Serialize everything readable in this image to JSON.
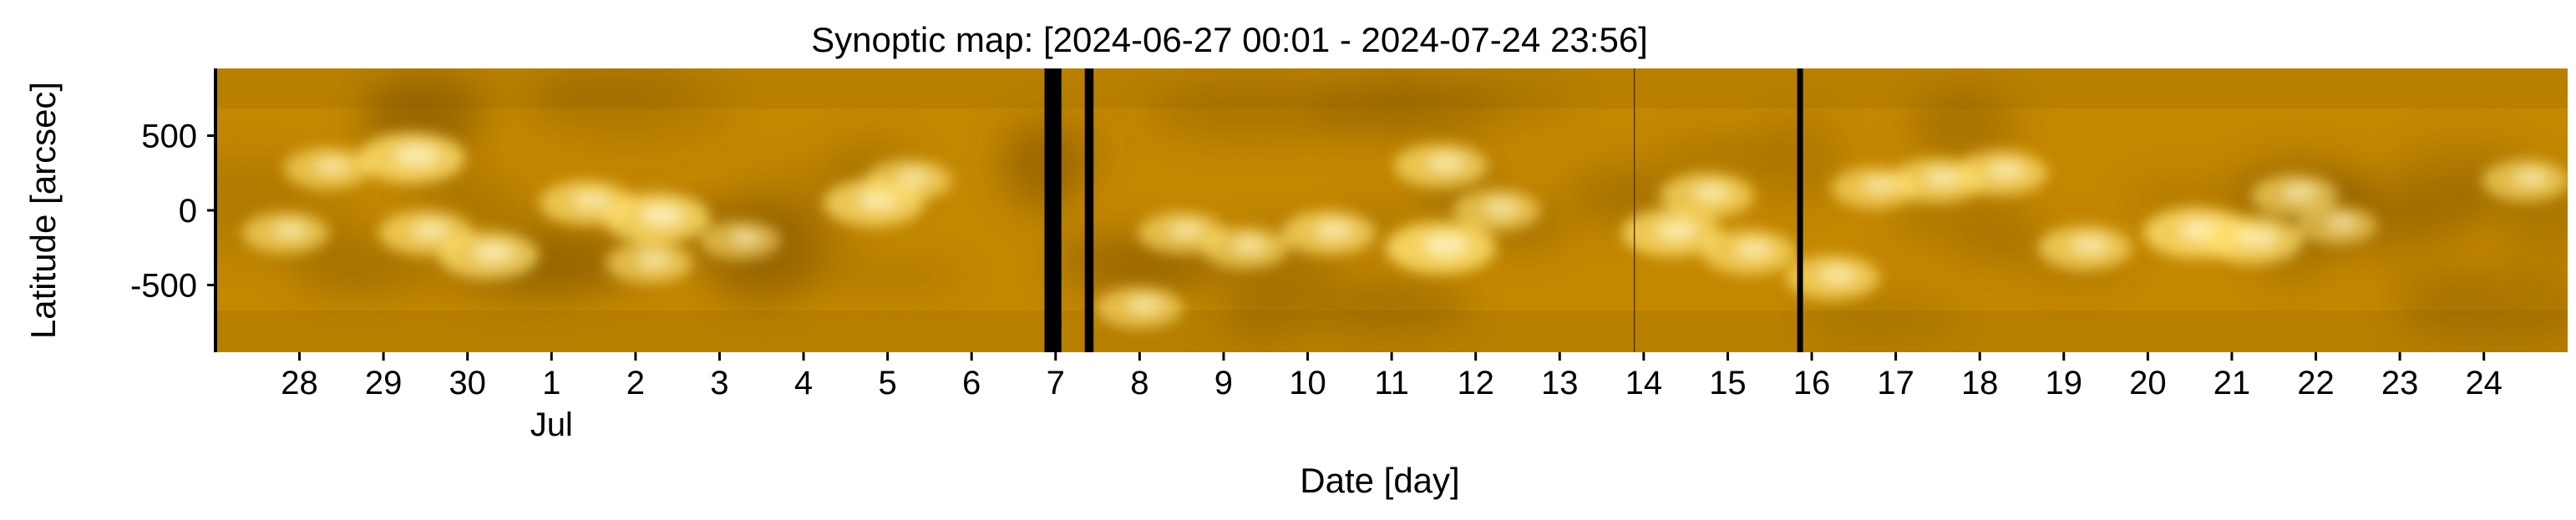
{
  "chart_data": {
    "type": "heatmap",
    "title": "Synoptic map: [2024-06-27 00:01 - 2024-07-24 23:56]",
    "xlabel": "Date [day]",
    "ylabel": "Latitude [arcsec]",
    "ylim": [
      -950,
      950
    ],
    "xlim": [
      "2024-06-27 00:01",
      "2024-07-24 23:56"
    ],
    "y_ticks": [
      500,
      0,
      -500
    ],
    "y_tick_labels": [
      "500",
      "0",
      "-500"
    ],
    "x_ticks": [
      {
        "date": "2024-06-28",
        "label": "28"
      },
      {
        "date": "2024-06-29",
        "label": "29"
      },
      {
        "date": "2024-06-30",
        "label": "30"
      },
      {
        "date": "2024-07-01",
        "label": "1",
        "sublabel": "Jul"
      },
      {
        "date": "2024-07-02",
        "label": "2"
      },
      {
        "date": "2024-07-03",
        "label": "3"
      },
      {
        "date": "2024-07-04",
        "label": "4"
      },
      {
        "date": "2024-07-05",
        "label": "5"
      },
      {
        "date": "2024-07-06",
        "label": "6"
      },
      {
        "date": "2024-07-07",
        "label": "7"
      },
      {
        "date": "2024-07-08",
        "label": "8"
      },
      {
        "date": "2024-07-09",
        "label": "9"
      },
      {
        "date": "2024-07-10",
        "label": "10"
      },
      {
        "date": "2024-07-11",
        "label": "11"
      },
      {
        "date": "2024-07-12",
        "label": "12"
      },
      {
        "date": "2024-07-13",
        "label": "13"
      },
      {
        "date": "2024-07-14",
        "label": "14"
      },
      {
        "date": "2024-07-15",
        "label": "15"
      },
      {
        "date": "2024-07-16",
        "label": "16"
      },
      {
        "date": "2024-07-17",
        "label": "17"
      },
      {
        "date": "2024-07-18",
        "label": "18"
      },
      {
        "date": "2024-07-19",
        "label": "19"
      },
      {
        "date": "2024-07-20",
        "label": "20"
      },
      {
        "date": "2024-07-21",
        "label": "21"
      },
      {
        "date": "2024-07-22",
        "label": "22"
      },
      {
        "date": "2024-07-23",
        "label": "23"
      },
      {
        "date": "2024-07-24",
        "label": "24"
      }
    ],
    "data_gaps": [
      {
        "start": "2024-07-06 20:50",
        "end": "2024-07-07 01:40"
      },
      {
        "start": "2024-07-07 08:20",
        "end": "2024-07-07 10:50"
      },
      {
        "start": "2024-07-15 19:50",
        "end": "2024-07-15 21:30"
      }
    ],
    "thin_gaps": [
      "2024-06-27 00:01",
      "2024-07-13 21:20"
    ],
    "colors": {
      "background": "#c48800",
      "bright": "#ffe070",
      "dark": "#7a5000",
      "gap": "#000000"
    },
    "bright_regions": [
      {
        "date": "2024-06-29 08:00",
        "lat": 350,
        "intensity": 0.9
      },
      {
        "date": "2024-06-28 08:00",
        "lat": 280,
        "intensity": 0.6
      },
      {
        "date": "2024-06-29 12:00",
        "lat": -150,
        "intensity": 0.7
      },
      {
        "date": "2024-06-30 06:00",
        "lat": -300,
        "intensity": 0.8
      },
      {
        "date": "2024-06-27 20:00",
        "lat": -150,
        "intensity": 0.6
      },
      {
        "date": "2024-07-01 10:00",
        "lat": 50,
        "intensity": 0.7
      },
      {
        "date": "2024-07-02 06:00",
        "lat": -50,
        "intensity": 0.9
      },
      {
        "date": "2024-07-02 04:00",
        "lat": -350,
        "intensity": 0.6
      },
      {
        "date": "2024-07-03 06:00",
        "lat": -200,
        "intensity": 0.5
      },
      {
        "date": "2024-07-04 20:00",
        "lat": 50,
        "intensity": 0.8
      },
      {
        "date": "2024-07-05 06:00",
        "lat": 200,
        "intensity": 0.6
      },
      {
        "date": "2024-07-08 00:00",
        "lat": -650,
        "intensity": 0.6
      },
      {
        "date": "2024-07-08 12:00",
        "lat": -150,
        "intensity": 0.6
      },
      {
        "date": "2024-07-09 06:00",
        "lat": -250,
        "intensity": 0.6
      },
      {
        "date": "2024-07-10 06:00",
        "lat": -150,
        "intensity": 0.7
      },
      {
        "date": "2024-07-11 14:00",
        "lat": -250,
        "intensity": 0.95
      },
      {
        "date": "2024-07-11 14:00",
        "lat": 300,
        "intensity": 0.7
      },
      {
        "date": "2024-07-12 06:00",
        "lat": 0,
        "intensity": 0.6
      },
      {
        "date": "2024-07-14 08:00",
        "lat": -150,
        "intensity": 0.8
      },
      {
        "date": "2024-07-14 18:00",
        "lat": 100,
        "intensity": 0.7
      },
      {
        "date": "2024-07-15 06:00",
        "lat": -280,
        "intensity": 0.7
      },
      {
        "date": "2024-07-16 06:00",
        "lat": -450,
        "intensity": 0.7
      },
      {
        "date": "2024-07-16 18:00",
        "lat": 150,
        "intensity": 0.6
      },
      {
        "date": "2024-07-17 12:00",
        "lat": 200,
        "intensity": 0.7
      },
      {
        "date": "2024-07-18 06:00",
        "lat": 250,
        "intensity": 0.7
      },
      {
        "date": "2024-07-19 06:00",
        "lat": -250,
        "intensity": 0.7
      },
      {
        "date": "2024-07-20 14:00",
        "lat": -150,
        "intensity": 0.9
      },
      {
        "date": "2024-07-21 06:00",
        "lat": -200,
        "intensity": 0.8
      },
      {
        "date": "2024-07-21 18:00",
        "lat": 100,
        "intensity": 0.6
      },
      {
        "date": "2024-07-22 06:00",
        "lat": -100,
        "intensity": 0.5
      },
      {
        "date": "2024-07-24 12:00",
        "lat": 200,
        "intensity": 0.6
      }
    ]
  }
}
